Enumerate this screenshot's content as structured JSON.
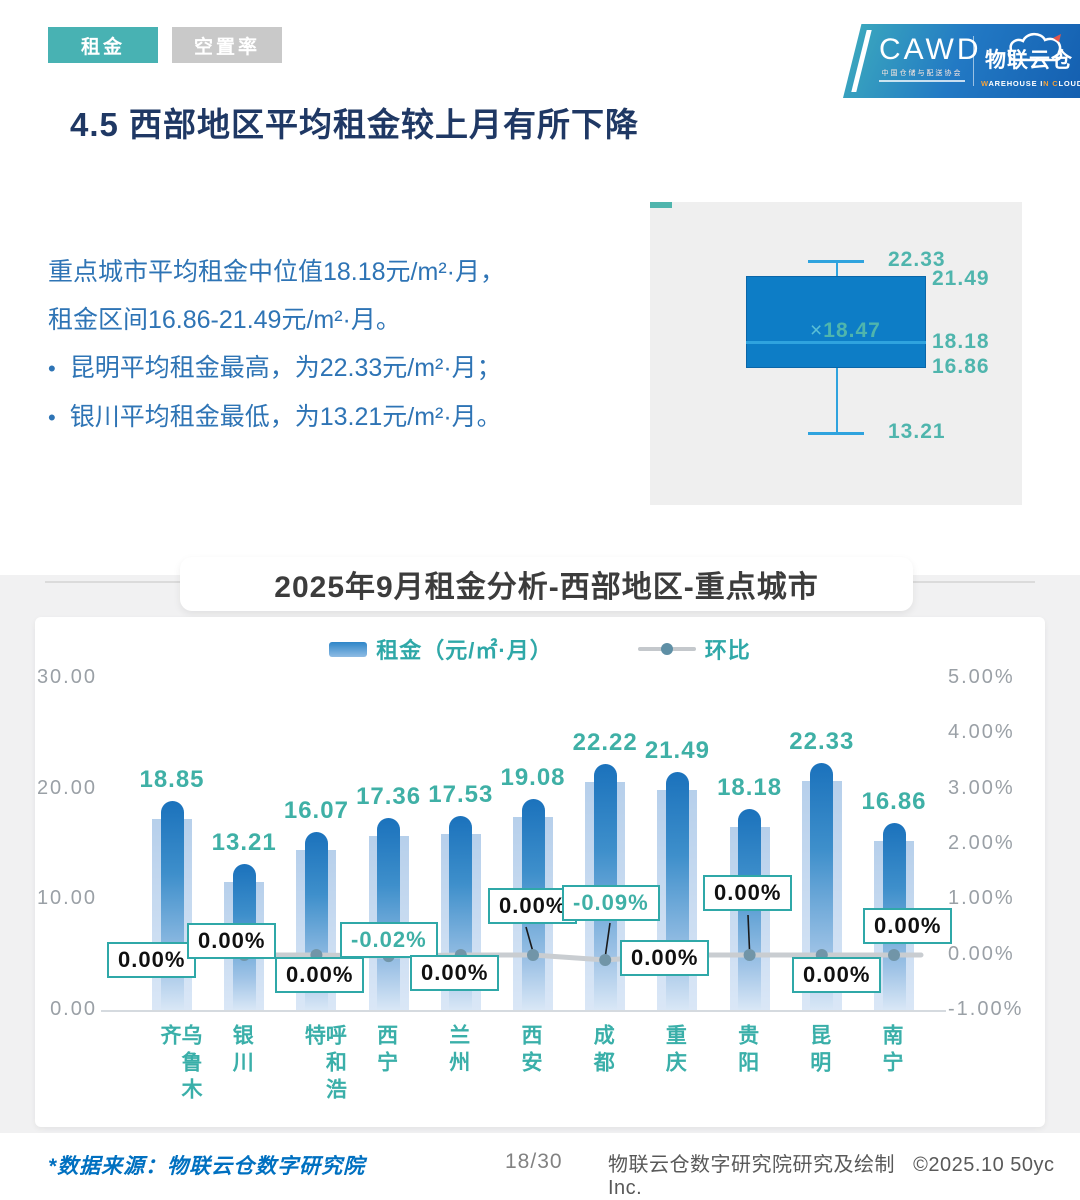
{
  "tabs": [
    {
      "label": "租金",
      "active": true
    },
    {
      "label": "空置率",
      "active": false
    }
  ],
  "logo": {
    "cawd": "CAWD",
    "cawd_sub": "中国仓储与配送协会",
    "brand": "物联云仓",
    "brand_sub_parts": [
      {
        "t": "W",
        "accent": true
      },
      {
        "t": "AREHOUSE ",
        "accent": false
      },
      {
        "t": "I",
        "accent": false
      },
      {
        "t": "N",
        "accent": true
      },
      {
        "t": " ",
        "accent": false
      },
      {
        "t": "C",
        "accent": true
      },
      {
        "t": "LOUD",
        "accent": false
      }
    ]
  },
  "page_title": "4.5 西部地区平均租金较上月有所下降",
  "summary": {
    "line1": "重点城市平均租金中位值18.18元/m²·月，",
    "line2": "租金区间16.86-21.49元/m²·月。",
    "bullets": [
      "昆明平均租金最高，为22.33元/m²·月；",
      "银川平均租金最低，为13.21元/m²·月。"
    ]
  },
  "boxplot": {
    "max": "22.33",
    "q3": "21.49",
    "mean_marker": "×",
    "mean": "18.47",
    "median": "18.18",
    "q1": "16.86",
    "min": "13.21"
  },
  "chart_title": "2025年9月租金分析-西部地区-重点城市",
  "legend": {
    "bar": "租金（元/㎡·月）",
    "line": "环比"
  },
  "chart_data": {
    "type": "bar+line",
    "title": "2025年9月租金分析-西部地区-重点城市",
    "categories": [
      "乌鲁木齐",
      "银川",
      "呼和浩特",
      "西宁",
      "兰州",
      "西安",
      "成都",
      "重庆",
      "贵阳",
      "昆明",
      "南宁"
    ],
    "series": [
      {
        "name": "租金（元/㎡·月）",
        "type": "bar",
        "axis": "left",
        "values": [
          18.85,
          13.21,
          16.07,
          17.36,
          17.53,
          19.08,
          22.22,
          21.49,
          18.18,
          22.33,
          16.86
        ]
      },
      {
        "name": "环比",
        "type": "line",
        "axis": "right",
        "values": [
          0.0,
          0.0,
          0.0,
          -0.02,
          0.0,
          0.0,
          -0.09,
          0.0,
          0.0,
          0.0,
          0.0
        ],
        "labels": [
          "0.00%",
          "0.00%",
          "0.00%",
          "-0.02%",
          "0.00%",
          "0.00%",
          "-0.09%",
          "0.00%",
          "0.00%",
          "0.00%",
          "0.00%"
        ]
      }
    ],
    "axis_left": {
      "ticks": [
        "30.00",
        "20.00",
        "10.00",
        "0.00"
      ],
      "range": [
        0,
        30
      ]
    },
    "axis_right": {
      "ticks": [
        "5.00%",
        "4.00%",
        "3.00%",
        "2.00%",
        "1.00%",
        "0.00%",
        "-1.00%"
      ],
      "range": [
        -1,
        5
      ]
    },
    "legend_position": "top",
    "grid": false
  },
  "footer": {
    "source": "*数据来源：物联云仓数字研究院",
    "page": "18/30",
    "credit": "物联云仓数字研究院研究及绘制",
    "copyright": "©2025.10 50yc Inc."
  },
  "colors": {
    "teal": "#3BAFA8",
    "bar_blue": "#1E78C0",
    "title_navy": "#1F3864",
    "body_blue": "#2E74B5",
    "pct_box_border": "#2FA8A8",
    "line_gray": "#C9CDD1",
    "dot_gray_blue": "#7195A8",
    "source_blue": "#0070C0",
    "boxplot_fill": "#0D7DC6",
    "boxplot_whisker": "#2FA3DE"
  }
}
